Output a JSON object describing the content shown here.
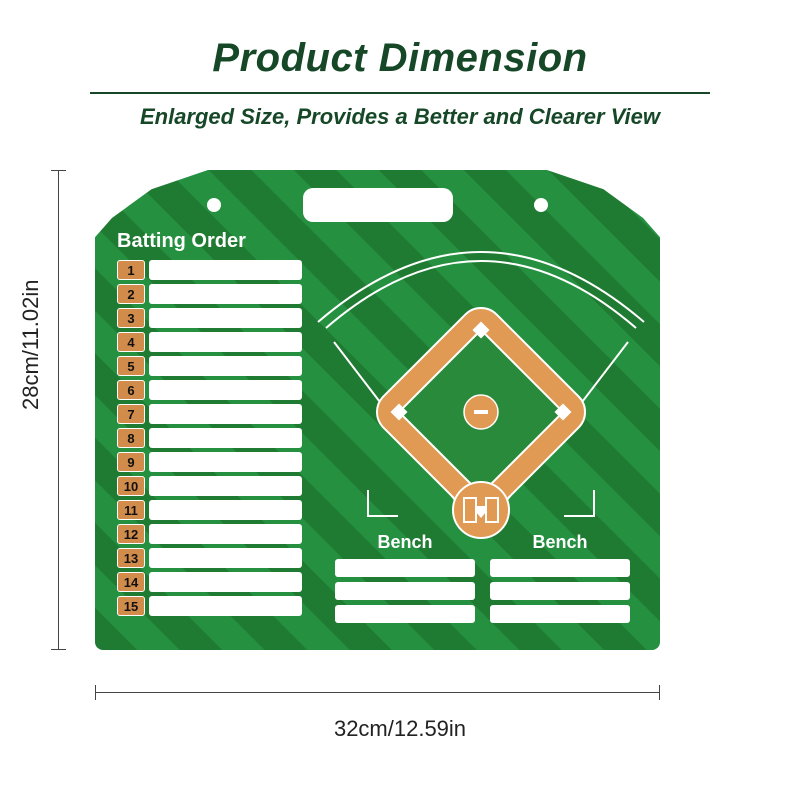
{
  "title": "Product Dimension",
  "subtitle": "Enlarged Size, Provides a Better and Clearer View",
  "height_label": "28cm/11.02in",
  "width_label": "32cm/12.59in",
  "board": {
    "batting_title": "Batting Order",
    "rows": [
      "1",
      "2",
      "3",
      "4",
      "5",
      "6",
      "7",
      "8",
      "9",
      "10",
      "11",
      "12",
      "13",
      "14",
      "15"
    ],
    "bench_title": "Bench",
    "bench_rows": 3,
    "colors": {
      "title": "#164828",
      "stripe_dark": "#1f7a32",
      "stripe_light": "#249040",
      "tag_bg": "#d18b4a",
      "white": "#ffffff",
      "infield": "#e09a53",
      "line": "#ffffff"
    }
  }
}
